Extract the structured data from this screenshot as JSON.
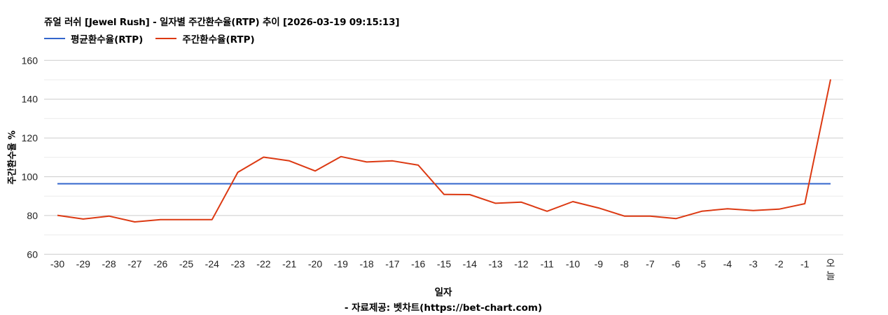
{
  "chart_data": {
    "type": "line",
    "title": "쥬얼 러쉬 [Jewel Rush] - 일자별 주간환수율(RTP) 추이 [2026-03-19 09:15:13]",
    "xlabel": "일자",
    "ylabel": "주간환수율 %",
    "source": "- 자료제공: 벳차트(https://bet-chart.com)",
    "ylim": [
      60,
      160
    ],
    "yticks": [
      60,
      80,
      100,
      120,
      140,
      160
    ],
    "grid": true,
    "legend_position": "top-left",
    "categories": [
      "-30",
      "-29",
      "-28",
      "-27",
      "-26",
      "-25",
      "-24",
      "-23",
      "-22",
      "-21",
      "-20",
      "-19",
      "-18",
      "-17",
      "-16",
      "-15",
      "-14",
      "-13",
      "-12",
      "-11",
      "-10",
      "-9",
      "-8",
      "-7",
      "-6",
      "-5",
      "-4",
      "-3",
      "-2",
      "-1",
      "오늘"
    ],
    "series": [
      {
        "name": "평균환수율(RTP)",
        "color": "#3366cc",
        "values": [
          96.4,
          96.4,
          96.4,
          96.4,
          96.4,
          96.4,
          96.4,
          96.4,
          96.4,
          96.4,
          96.4,
          96.4,
          96.4,
          96.4,
          96.4,
          96.4,
          96.4,
          96.4,
          96.4,
          96.4,
          96.4,
          96.4,
          96.4,
          96.4,
          96.4,
          96.4,
          96.4,
          96.4,
          96.4,
          96.4,
          96.4
        ]
      },
      {
        "name": "주간환수율(RTP)",
        "color": "#dc3912",
        "values": [
          80.1,
          78.2,
          79.7,
          76.7,
          77.9,
          77.9,
          77.9,
          102.3,
          110.1,
          108.2,
          103.0,
          110.4,
          107.6,
          108.2,
          106.0,
          90.9,
          90.8,
          86.3,
          86.9,
          82.2,
          87.2,
          83.9,
          79.7,
          79.7,
          78.4,
          82.2,
          83.5,
          82.6,
          83.3,
          86.1,
          150.2
        ]
      }
    ]
  }
}
